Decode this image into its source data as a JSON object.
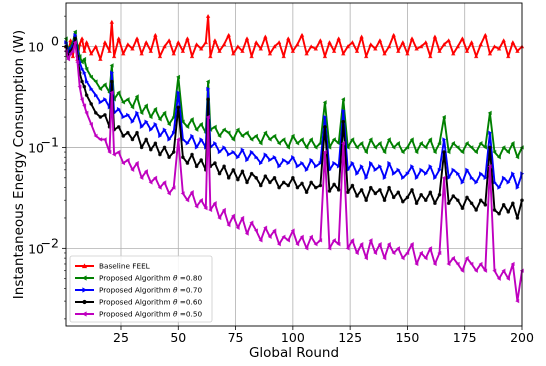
{
  "chart_data": {
    "type": "line",
    "title": "",
    "xlabel": "Global Round",
    "ylabel": "Instantaneous Energy Consumption (W)",
    "xscale": "linear",
    "yscale": "log",
    "xlim": [
      1,
      200
    ],
    "ylim": [
      0.0017,
      2.7
    ],
    "grid": true,
    "legend_position": "lower-left",
    "x_ticks": [
      25,
      50,
      75,
      100,
      125,
      150,
      175,
      200
    ],
    "x_tick_labels": [
      "25",
      "50",
      "75",
      "100",
      "125",
      "150",
      "175",
      "200"
    ],
    "y_ticks": [
      0.01,
      0.1,
      1
    ],
    "y_tick_labels": [
      "10$^{-2}$",
      "10$^{-1}$",
      "10$^{0}$"
    ],
    "y_tick_display": [
      {
        "base": "10",
        "exp": "−2"
      },
      {
        "base": "10",
        "exp": "−1"
      },
      {
        "base": "10",
        "exp": "0"
      }
    ],
    "series": [
      {
        "name": "Baseline FEEL",
        "color": "#ff0000",
        "marker": "triangle-up",
        "x": [
          1,
          2,
          3,
          4,
          5,
          6,
          7,
          8,
          9,
          10,
          12,
          14,
          16,
          18,
          20,
          21,
          22,
          24,
          26,
          28,
          30,
          32,
          34,
          36,
          38,
          40,
          42,
          44,
          46,
          48,
          50,
          52,
          54,
          56,
          58,
          60,
          62,
          63,
          64,
          66,
          68,
          70,
          72,
          74,
          76,
          78,
          80,
          82,
          84,
          86,
          88,
          90,
          92,
          94,
          96,
          98,
          100,
          102,
          104,
          106,
          108,
          110,
          112,
          114,
          116,
          118,
          120,
          122,
          124,
          126,
          128,
          130,
          132,
          134,
          136,
          138,
          140,
          142,
          144,
          146,
          148,
          150,
          152,
          154,
          156,
          158,
          160,
          162,
          164,
          166,
          168,
          170,
          172,
          174,
          176,
          178,
          180,
          182,
          184,
          186,
          188,
          190,
          192,
          194,
          196,
          198,
          200
        ],
        "y": [
          1.0,
          0.85,
          1.15,
          0.8,
          1.3,
          0.75,
          1.05,
          1.2,
          0.9,
          1.1,
          0.85,
          1.0,
          0.75,
          1.1,
          0.9,
          1.75,
          0.8,
          1.2,
          0.85,
          1.05,
          0.95,
          1.2,
          0.85,
          1.1,
          0.9,
          1.3,
          0.8,
          1.0,
          1.15,
          0.85,
          1.1,
          0.9,
          1.2,
          0.8,
          1.05,
          0.95,
          1.1,
          2.0,
          0.8,
          1.15,
          0.9,
          1.05,
          1.3,
          0.85,
          1.0,
          0.9,
          1.2,
          0.8,
          1.1,
          0.95,
          1.25,
          0.85,
          1.0,
          1.1,
          0.8,
          1.2,
          0.9,
          1.05,
          1.3,
          0.85,
          1.0,
          0.95,
          1.15,
          0.8,
          1.1,
          0.9,
          1.2,
          0.85,
          1.0,
          1.1,
          0.9,
          1.25,
          0.8,
          1.05,
          0.95,
          1.15,
          0.85,
          1.0,
          1.3,
          0.9,
          1.1,
          0.85,
          1.2,
          0.95,
          1.0,
          1.1,
          0.8,
          1.25,
          0.9,
          1.05,
          1.15,
          0.85,
          1.0,
          1.2,
          0.9,
          1.1,
          0.8,
          1.05,
          1.3,
          0.85,
          1.0,
          0.95,
          1.15,
          0.8,
          1.1,
          0.9,
          1.0
        ]
      },
      {
        "name": "Proposed Algorithm $\\theta$ =0.80",
        "color": "#008000",
        "marker": "triangle-left",
        "x": [
          1,
          2,
          3,
          4,
          5,
          6,
          7,
          8,
          9,
          10,
          12,
          14,
          16,
          18,
          20,
          21,
          22,
          24,
          26,
          28,
          30,
          32,
          34,
          36,
          38,
          40,
          42,
          44,
          46,
          48,
          50,
          52,
          54,
          56,
          58,
          60,
          62,
          63,
          64,
          66,
          68,
          70,
          72,
          74,
          76,
          78,
          80,
          82,
          84,
          86,
          88,
          90,
          92,
          94,
          96,
          98,
          100,
          102,
          104,
          106,
          108,
          110,
          112,
          114,
          116,
          118,
          120,
          122,
          124,
          126,
          128,
          130,
          132,
          134,
          136,
          138,
          140,
          142,
          144,
          146,
          148,
          150,
          152,
          154,
          156,
          158,
          160,
          162,
          164,
          166,
          168,
          170,
          172,
          174,
          176,
          178,
          180,
          182,
          184,
          186,
          188,
          190,
          192,
          194,
          196,
          198,
          200
        ],
        "y": [
          1.2,
          0.9,
          1.0,
          1.1,
          1.4,
          1.0,
          0.8,
          0.7,
          0.75,
          0.6,
          0.5,
          0.45,
          0.38,
          0.42,
          0.35,
          0.65,
          0.3,
          0.35,
          0.28,
          0.3,
          0.25,
          0.32,
          0.22,
          0.26,
          0.2,
          0.24,
          0.19,
          0.22,
          0.17,
          0.2,
          0.5,
          0.18,
          0.16,
          0.19,
          0.15,
          0.17,
          0.14,
          0.45,
          0.15,
          0.16,
          0.13,
          0.15,
          0.14,
          0.12,
          0.15,
          0.13,
          0.14,
          0.12,
          0.13,
          0.11,
          0.14,
          0.12,
          0.13,
          0.11,
          0.12,
          0.1,
          0.13,
          0.11,
          0.12,
          0.1,
          0.12,
          0.1,
          0.11,
          0.28,
          0.1,
          0.12,
          0.11,
          0.3,
          0.1,
          0.12,
          0.1,
          0.11,
          0.09,
          0.12,
          0.1,
          0.11,
          0.09,
          0.12,
          0.1,
          0.11,
          0.09,
          0.1,
          0.12,
          0.09,
          0.11,
          0.1,
          0.12,
          0.09,
          0.11,
          0.2,
          0.09,
          0.11,
          0.1,
          0.09,
          0.11,
          0.1,
          0.09,
          0.11,
          0.1,
          0.22,
          0.09,
          0.08,
          0.1,
          0.09,
          0.11,
          0.08,
          0.1
        ]
      },
      {
        "name": "Proposed Algorithm $\\theta$ =0.70",
        "color": "#0000ff",
        "marker": "triangle-right",
        "x": [
          1,
          2,
          3,
          4,
          5,
          6,
          7,
          8,
          9,
          10,
          12,
          14,
          16,
          18,
          20,
          21,
          22,
          24,
          26,
          28,
          30,
          32,
          34,
          36,
          38,
          40,
          42,
          44,
          46,
          48,
          50,
          52,
          54,
          56,
          58,
          60,
          62,
          63,
          64,
          66,
          68,
          70,
          72,
          74,
          76,
          78,
          80,
          82,
          84,
          86,
          88,
          90,
          92,
          94,
          96,
          98,
          100,
          102,
          104,
          106,
          108,
          110,
          112,
          114,
          116,
          118,
          120,
          122,
          124,
          126,
          128,
          130,
          132,
          134,
          136,
          138,
          140,
          142,
          144,
          146,
          148,
          150,
          152,
          154,
          156,
          158,
          160,
          162,
          164,
          166,
          168,
          170,
          172,
          174,
          176,
          178,
          180,
          182,
          184,
          186,
          188,
          190,
          192,
          194,
          196,
          198,
          200
        ],
        "y": [
          1.1,
          0.85,
          0.95,
          1.0,
          1.3,
          0.9,
          0.7,
          0.6,
          0.55,
          0.45,
          0.38,
          0.33,
          0.28,
          0.3,
          0.25,
          0.55,
          0.22,
          0.24,
          0.2,
          0.21,
          0.18,
          0.22,
          0.16,
          0.18,
          0.15,
          0.17,
          0.13,
          0.15,
          0.12,
          0.14,
          0.35,
          0.12,
          0.11,
          0.13,
          0.1,
          0.12,
          0.1,
          0.38,
          0.1,
          0.11,
          0.09,
          0.1,
          0.085,
          0.09,
          0.08,
          0.095,
          0.075,
          0.09,
          0.08,
          0.07,
          0.085,
          0.075,
          0.08,
          0.065,
          0.075,
          0.07,
          0.08,
          0.065,
          0.07,
          0.06,
          0.075,
          0.065,
          0.07,
          0.2,
          0.06,
          0.07,
          0.065,
          0.23,
          0.06,
          0.07,
          0.055,
          0.065,
          0.05,
          0.07,
          0.06,
          0.065,
          0.05,
          0.07,
          0.055,
          0.06,
          0.05,
          0.055,
          0.065,
          0.05,
          0.06,
          0.055,
          0.065,
          0.05,
          0.06,
          0.12,
          0.05,
          0.06,
          0.055,
          0.045,
          0.06,
          0.05,
          0.045,
          0.055,
          0.05,
          0.14,
          0.045,
          0.04,
          0.05,
          0.045,
          0.055,
          0.04,
          0.055
        ]
      },
      {
        "name": "Proposed Algorithm $\\theta$ =0.60",
        "color": "#000000",
        "marker": "circle",
        "x": [
          1,
          2,
          3,
          4,
          5,
          6,
          7,
          8,
          9,
          10,
          12,
          14,
          16,
          18,
          20,
          21,
          22,
          24,
          26,
          28,
          30,
          32,
          34,
          36,
          38,
          40,
          42,
          44,
          46,
          48,
          50,
          52,
          54,
          56,
          58,
          60,
          62,
          63,
          64,
          66,
          68,
          70,
          72,
          74,
          76,
          78,
          80,
          82,
          84,
          86,
          88,
          90,
          92,
          94,
          96,
          98,
          100,
          102,
          104,
          106,
          108,
          110,
          112,
          114,
          116,
          118,
          120,
          122,
          124,
          126,
          128,
          130,
          132,
          134,
          136,
          138,
          140,
          142,
          144,
          146,
          148,
          150,
          152,
          154,
          156,
          158,
          160,
          162,
          164,
          166,
          168,
          170,
          172,
          174,
          176,
          178,
          180,
          182,
          184,
          186,
          188,
          190,
          192,
          194,
          196,
          198,
          200
        ],
        "y": [
          1.0,
          0.8,
          0.9,
          0.95,
          1.2,
          0.8,
          0.55,
          0.45,
          0.4,
          0.33,
          0.27,
          0.22,
          0.2,
          0.21,
          0.16,
          0.45,
          0.15,
          0.16,
          0.13,
          0.14,
          0.12,
          0.14,
          0.1,
          0.12,
          0.095,
          0.11,
          0.085,
          0.1,
          0.08,
          0.09,
          0.25,
          0.08,
          0.07,
          0.085,
          0.065,
          0.075,
          0.06,
          0.3,
          0.065,
          0.07,
          0.055,
          0.065,
          0.05,
          0.06,
          0.048,
          0.058,
          0.045,
          0.055,
          0.05,
          0.042,
          0.052,
          0.045,
          0.05,
          0.04,
          0.045,
          0.042,
          0.05,
          0.04,
          0.044,
          0.036,
          0.045,
          0.04,
          0.042,
          0.16,
          0.037,
          0.043,
          0.038,
          0.18,
          0.036,
          0.042,
          0.033,
          0.038,
          0.03,
          0.04,
          0.035,
          0.038,
          0.03,
          0.04,
          0.032,
          0.036,
          0.029,
          0.032,
          0.038,
          0.028,
          0.034,
          0.03,
          0.036,
          0.028,
          0.034,
          0.09,
          0.028,
          0.033,
          0.03,
          0.025,
          0.032,
          0.028,
          0.024,
          0.03,
          0.027,
          0.1,
          0.024,
          0.022,
          0.027,
          0.023,
          0.028,
          0.02,
          0.03
        ]
      },
      {
        "name": "Proposed Algorithm $\\theta$ =0.50",
        "color": "#bf00bf",
        "marker": "triangle-left",
        "x": [
          1,
          2,
          3,
          4,
          5,
          6,
          7,
          8,
          9,
          10,
          12,
          14,
          16,
          18,
          20,
          21,
          22,
          24,
          26,
          28,
          30,
          32,
          34,
          36,
          38,
          40,
          42,
          44,
          46,
          48,
          50,
          52,
          54,
          56,
          58,
          60,
          62,
          63,
          64,
          66,
          68,
          70,
          72,
          74,
          76,
          78,
          80,
          82,
          84,
          86,
          88,
          90,
          92,
          94,
          96,
          98,
          100,
          102,
          104,
          106,
          108,
          110,
          112,
          114,
          116,
          118,
          120,
          122,
          124,
          126,
          128,
          130,
          132,
          134,
          136,
          138,
          140,
          142,
          144,
          146,
          148,
          150,
          152,
          154,
          156,
          158,
          160,
          162,
          164,
          166,
          168,
          170,
          172,
          174,
          176,
          178,
          180,
          182,
          184,
          186,
          188,
          190,
          192,
          194,
          196,
          198,
          200
        ],
        "y": [
          0.9,
          0.75,
          0.85,
          0.9,
          1.1,
          0.7,
          0.4,
          0.3,
          0.26,
          0.22,
          0.17,
          0.13,
          0.12,
          0.12,
          0.09,
          0.35,
          0.085,
          0.09,
          0.07,
          0.075,
          0.06,
          0.07,
          0.05,
          0.058,
          0.045,
          0.05,
          0.04,
          0.045,
          0.035,
          0.04,
          0.12,
          0.035,
          0.03,
          0.036,
          0.026,
          0.03,
          0.025,
          0.2,
          0.024,
          0.028,
          0.02,
          0.024,
          0.017,
          0.021,
          0.016,
          0.02,
          0.014,
          0.018,
          0.015,
          0.012,
          0.016,
          0.013,
          0.015,
          0.011,
          0.013,
          0.012,
          0.015,
          0.011,
          0.013,
          0.01,
          0.013,
          0.011,
          0.012,
          0.09,
          0.01,
          0.012,
          0.011,
          0.11,
          0.01,
          0.012,
          0.009,
          0.011,
          0.008,
          0.012,
          0.009,
          0.011,
          0.008,
          0.011,
          0.009,
          0.01,
          0.008,
          0.009,
          0.011,
          0.007,
          0.009,
          0.008,
          0.01,
          0.007,
          0.009,
          0.05,
          0.007,
          0.008,
          0.007,
          0.006,
          0.008,
          0.007,
          0.006,
          0.007,
          0.006,
          0.065,
          0.006,
          0.005,
          0.006,
          0.005,
          0.007,
          0.003,
          0.006
        ]
      }
    ]
  }
}
